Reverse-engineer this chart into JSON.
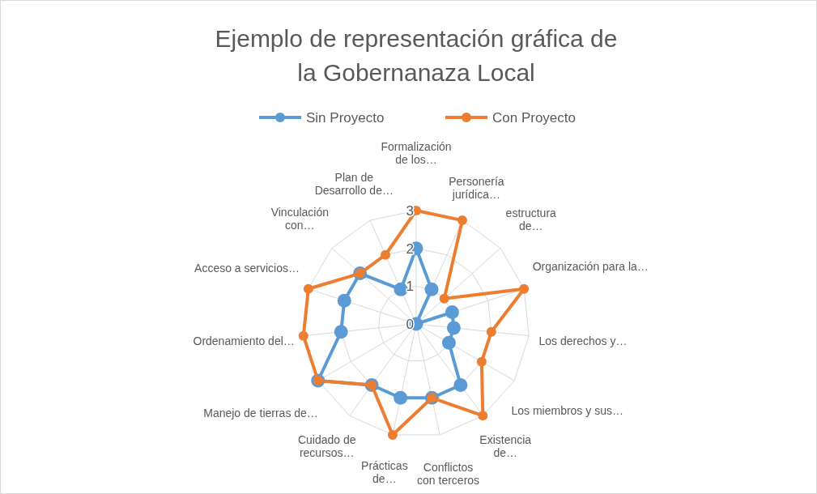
{
  "chart_data": {
    "type": "radar",
    "title": "Ejemplo de representación gráfica de la Gobernanaza Local",
    "categories": [
      "Formalización de los…",
      "Personería jurídica…",
      "estructura de…",
      "Organización para la…",
      "Los derechos y…",
      "Los miembros y sus…",
      "Existencia de…",
      "Conflictos con terceros",
      "Prácticas de…",
      "Cuidado de recursos…",
      "Manejo de tierras de…",
      "Ordenamiento del…",
      "Acceso a servicios…",
      "Vinculación con…",
      "Plan de Desarrollo de…"
    ],
    "series": [
      {
        "name": "Sin Proyecto",
        "color": "#5b9bd5",
        "values": [
          2,
          1,
          0,
          1,
          1,
          1,
          2,
          2,
          2,
          2,
          3,
          2,
          2,
          2,
          1
        ]
      },
      {
        "name": "Con Proyecto",
        "color": "#ed7d31",
        "values": [
          3,
          3,
          1,
          3,
          2,
          2,
          3,
          2,
          3,
          2,
          3,
          3,
          3,
          2,
          2
        ]
      }
    ],
    "ylim": [
      0,
      3
    ],
    "yticks": [
      0,
      1,
      2,
      3
    ],
    "grid": true,
    "legend": "top",
    "marker": "circle",
    "line_style": "solid"
  }
}
